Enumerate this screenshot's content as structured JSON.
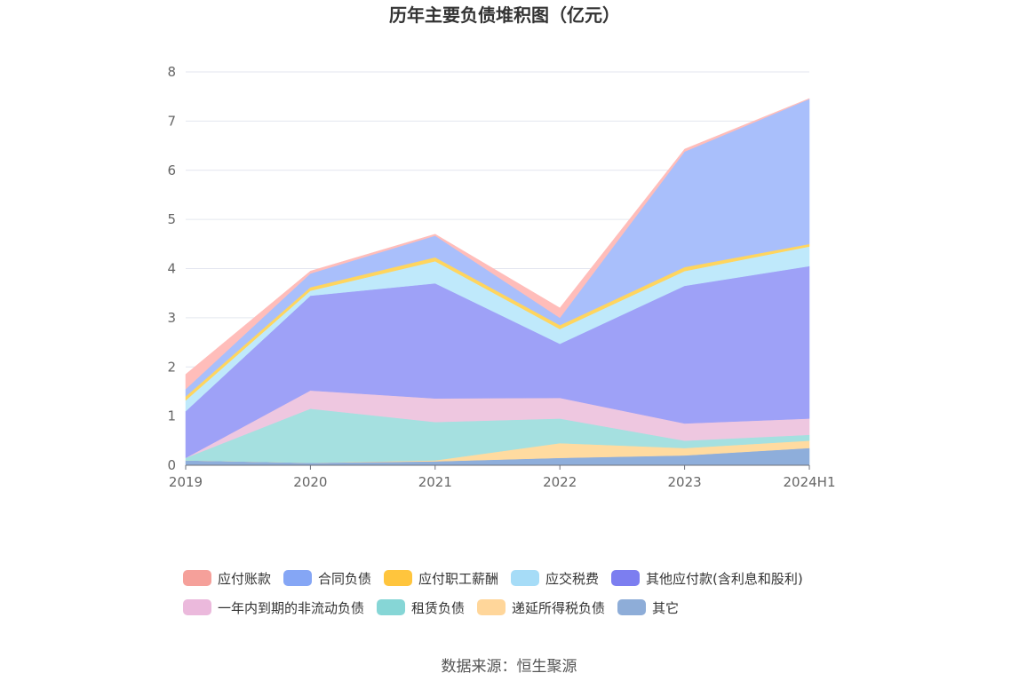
{
  "chart_data": {
    "type": "area",
    "stacked": true,
    "title": "历年主要负债堆积图（亿元）",
    "source": "数据来源：恒生聚源",
    "x": [
      "2019",
      "2020",
      "2021",
      "2022",
      "2023",
      "2024H1"
    ],
    "ylim": [
      0,
      8
    ],
    "yticks": [
      "0",
      "1",
      "2",
      "3",
      "4",
      "5",
      "6",
      "7",
      "8"
    ],
    "grid": true,
    "legend_position": "bottom",
    "series": [
      {
        "name": "其它",
        "color": "#8eaedb",
        "values": [
          0.1,
          0.05,
          0.08,
          0.15,
          0.2,
          0.35
        ]
      },
      {
        "name": "递延所得税负债",
        "color": "#ffdba0",
        "values": [
          0.0,
          0.0,
          0.02,
          0.3,
          0.15,
          0.15
        ]
      },
      {
        "name": "租赁负债",
        "color": "#a5e0e0",
        "values": [
          0.05,
          1.1,
          0.78,
          0.5,
          0.15,
          0.12
        ]
      },
      {
        "name": "一年内到期的非流动负债",
        "color": "#eec7e0",
        "values": [
          0.0,
          0.37,
          0.48,
          0.42,
          0.35,
          0.33
        ]
      },
      {
        "name": "其他应付款(含利息和股利)",
        "color": "#9ea1f7",
        "values": [
          0.95,
          1.93,
          2.34,
          1.1,
          2.8,
          3.1
        ]
      },
      {
        "name": "应交税费",
        "color": "#bfe9fb",
        "values": [
          0.22,
          0.1,
          0.45,
          0.3,
          0.3,
          0.4
        ]
      },
      {
        "name": "应付职工薪酬",
        "color": "#ffd55e",
        "values": [
          0.08,
          0.07,
          0.08,
          0.08,
          0.08,
          0.05
        ]
      },
      {
        "name": "合同负债",
        "color": "#a9bffb",
        "values": [
          0.15,
          0.28,
          0.44,
          0.15,
          2.35,
          2.95
        ]
      },
      {
        "name": "应付账款",
        "color": "#ffbdba",
        "values": [
          0.3,
          0.05,
          0.03,
          0.2,
          0.05,
          0.01
        ]
      }
    ],
    "legend": [
      {
        "name": "应付账款",
        "color": "#f5a09a"
      },
      {
        "name": "合同负债",
        "color": "#85a6f5"
      },
      {
        "name": "应付职工薪酬",
        "color": "#ffc53d"
      },
      {
        "name": "应交税费",
        "color": "#a6dcf7"
      },
      {
        "name": "其他应付款(含利息和股利)",
        "color": "#7c7ef0"
      },
      {
        "name": "一年内到期的非流动负债",
        "color": "#ebb9dc"
      },
      {
        "name": "租赁负债",
        "color": "#86d6d6"
      },
      {
        "name": "递延所得税负债",
        "color": "#ffd69a"
      },
      {
        "name": "其它",
        "color": "#8eadd8"
      }
    ]
  }
}
